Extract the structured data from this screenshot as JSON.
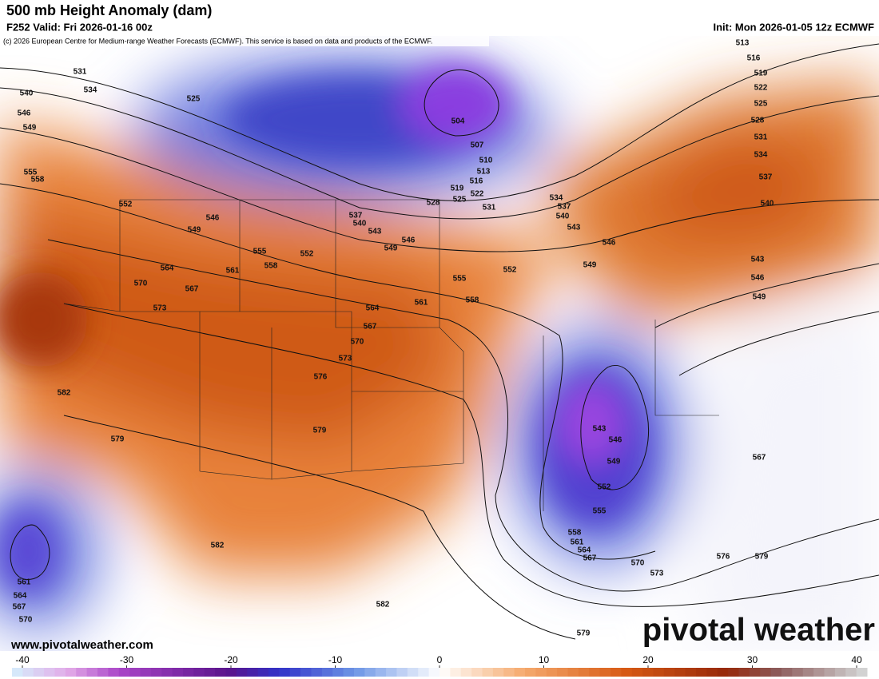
{
  "header": {
    "title": "500 mb Height Anomaly (dam)",
    "valid": "F252 Valid: Fri 2026-01-16 00z",
    "init": "Init: Mon 2026-01-05 12z ECMWF",
    "credit": "(c) 2026 European Centre for Medium-range Weather Forecasts (ECMWF). This service is based on data and products of the ECMWF."
  },
  "map": {
    "contour_labels": [
      "531",
      "534",
      "540",
      "546",
      "549",
      "525",
      "555",
      "558",
      "552",
      "546",
      "549",
      "555",
      "552",
      "558",
      "561",
      "564",
      "570",
      "567",
      "573",
      "537",
      "540",
      "543",
      "546",
      "549",
      "528",
      "525",
      "522",
      "519",
      "516",
      "513",
      "510",
      "507",
      "504",
      "531",
      "534",
      "537",
      "540",
      "543",
      "546",
      "549",
      "552",
      "555",
      "558",
      "561",
      "564",
      "567",
      "570",
      "573",
      "576",
      "579",
      "582",
      "579",
      "582",
      "582",
      "513",
      "516",
      "519",
      "522",
      "525",
      "528",
      "531",
      "534",
      "537",
      "540",
      "543",
      "546",
      "549",
      "543",
      "546",
      "549",
      "552",
      "555",
      "558",
      "561",
      "564",
      "567",
      "570",
      "573",
      "576",
      "579",
      "567",
      "579",
      "561",
      "564",
      "567",
      "570"
    ]
  },
  "colorbar": {
    "lim": [
      -40,
      40
    ],
    "ticks": [
      -40,
      -30,
      -20,
      -10,
      0,
      10,
      20,
      30,
      40
    ]
  },
  "footer": {
    "website": "www.pivotalweather.com",
    "brand": "pivotal weather"
  }
}
